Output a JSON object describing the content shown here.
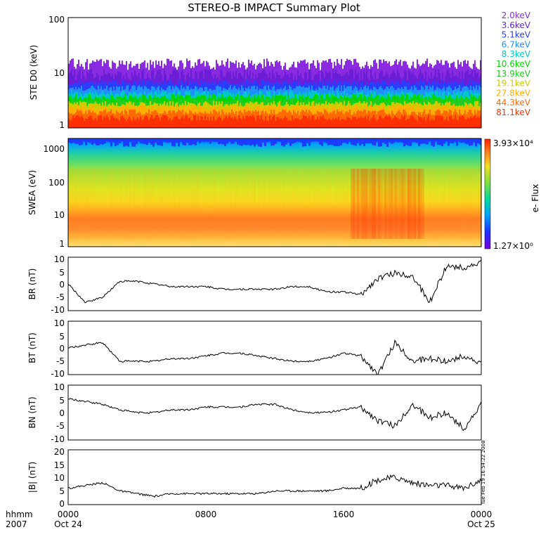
{
  "title": "STEREO-B IMPACT Summary Plot",
  "stamp": "Tue Feb 19 16:54:22 2008",
  "x_axis": {
    "row1_label": "hhmm",
    "row2_label": "2007",
    "ticks": [
      "0000",
      "0800",
      "1600",
      "0000"
    ],
    "dates": [
      "Oct 24",
      "",
      "",
      "Oct 25"
    ]
  },
  "colors": {
    "frame": "#000000",
    "ste_channels": [
      "#8a2be2",
      "#6a1fd6",
      "#2a3cff",
      "#1e90ff",
      "#00c8c8",
      "#00d800",
      "#22cc22",
      "#cccc00",
      "#ffb000",
      "#ff6a00",
      "#ff3000"
    ]
  },
  "chart_data": [
    {
      "type": "area",
      "name": "panel-ste",
      "ylabel": "STE D0 (keV)",
      "yscale": "log",
      "ylim": [
        1,
        100
      ],
      "yticks": [
        "100",
        "10",
        "1"
      ],
      "legend": [
        "2.0keV",
        "3.6keV",
        "5.1keV",
        "6.7keV",
        "8.3keV",
        "10.6keV",
        "13.9keV",
        "19.1keV",
        "27.8keV",
        "44.3keV",
        "81.1keV"
      ],
      "legend_placement": "right",
      "x": [
        "0000",
        "0800",
        "1600",
        "0000"
      ],
      "note": "stacked multi-channel energy bands, values approx 1-15 keV"
    },
    {
      "type": "heatmap",
      "name": "panel-swea",
      "ylabel": "SWEA (eV)",
      "yscale": "log",
      "ylim": [
        1,
        2000
      ],
      "yticks": [
        "1000",
        "100",
        "10",
        "1"
      ],
      "colorbar_label": "e- Flux",
      "colorbar_range": [
        "3.93×10⁴",
        "1.27×10⁰"
      ],
      "x": [
        "0000",
        "0800",
        "1600",
        "0000"
      ]
    },
    {
      "type": "line",
      "name": "panel-br",
      "ylabel": "BR (nT)",
      "ylim": [
        -10,
        10
      ],
      "yticks": [
        "10",
        "5",
        "0",
        "-5",
        "-10"
      ],
      "x_hours": [
        0,
        1,
        2,
        3,
        4,
        5,
        6,
        7,
        8,
        9,
        10,
        11,
        12,
        13,
        14,
        15,
        16,
        17,
        18,
        19,
        20,
        21,
        22,
        23,
        24
      ],
      "values": [
        0,
        -7,
        -5,
        1,
        1,
        0,
        -1,
        -1,
        -1,
        -2,
        -2,
        -2,
        -2,
        -1,
        -1,
        -3,
        -3,
        -4,
        2,
        4,
        3,
        -7,
        7,
        6,
        8
      ]
    },
    {
      "type": "line",
      "name": "panel-bt",
      "ylabel": "BT (nT)",
      "ylim": [
        -10,
        10
      ],
      "yticks": [
        "10",
        "5",
        "0",
        "-5",
        "-10"
      ],
      "x_hours": [
        0,
        1,
        2,
        3,
        4,
        5,
        6,
        7,
        8,
        9,
        10,
        11,
        12,
        13,
        14,
        15,
        16,
        17,
        18,
        19,
        20,
        21,
        22,
        23,
        24
      ],
      "values": [
        0,
        1,
        2,
        -5,
        -5,
        -5,
        -4,
        -4,
        -3,
        -2,
        -2,
        -3,
        -4,
        -5,
        -5,
        -4,
        -2,
        -3,
        -10,
        2,
        -5,
        -4,
        -5,
        -3,
        -6
      ]
    },
    {
      "type": "line",
      "name": "panel-bn",
      "ylabel": "BN (nT)",
      "ylim": [
        -10,
        10
      ],
      "yticks": [
        "10",
        "5",
        "0",
        "-5",
        "-10"
      ],
      "x_hours": [
        0,
        1,
        2,
        3,
        4,
        5,
        6,
        7,
        8,
        9,
        10,
        11,
        12,
        13,
        14,
        15,
        16,
        17,
        18,
        19,
        20,
        21,
        22,
        23,
        24
      ],
      "values": [
        5,
        4,
        3,
        1,
        0,
        0,
        1,
        1,
        2,
        2,
        2,
        3,
        3,
        1,
        0,
        0,
        1,
        2,
        -3,
        -5,
        3,
        -2,
        0,
        -6,
        3
      ]
    },
    {
      "type": "line",
      "name": "panel-bmag",
      "ylabel": "|B| (nT)",
      "ylim": [
        0,
        20
      ],
      "yticks": [
        "20",
        "15",
        "10",
        "5",
        "0"
      ],
      "x_hours": [
        0,
        1,
        2,
        3,
        4,
        5,
        6,
        7,
        8,
        9,
        10,
        11,
        12,
        13,
        14,
        15,
        16,
        17,
        18,
        19,
        20,
        21,
        22,
        23,
        24
      ],
      "values": [
        6,
        7,
        8,
        5,
        4,
        3,
        4,
        4,
        4,
        4,
        4,
        4,
        5,
        5,
        5,
        5,
        6,
        6,
        9,
        10,
        8,
        7,
        7,
        6,
        9
      ]
    }
  ]
}
